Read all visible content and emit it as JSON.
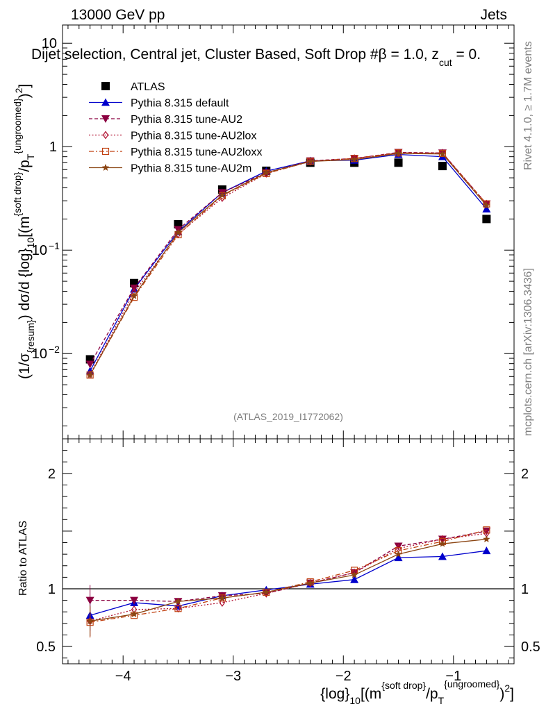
{
  "header": {
    "left": "13000 GeV pp",
    "right": "Jets",
    "title": "Dijet selection, Central jet, Cluster Based, Soft Drop #β = 1.0, z",
    "title_sub": "cut",
    "title_tail": " = 0."
  },
  "side_labels": {
    "rivet": "Rivet 4.1.0, ≥ 1.7M events",
    "mcplots": "mcplots.cern.ch [arXiv:1306.3436]"
  },
  "watermark": "(ATLAS_2019_I1772062)",
  "y_axis": {
    "main": "(1/σ",
    "main_sub": "{resum}",
    "main_mid": ") dσ/d {log}",
    "main_sub2": "10",
    "main_b": "[(m",
    "main_sup": "{soft drop}",
    "main_c": "/p",
    "main_sub3": "T",
    "main_sup2": "{ungroomed}",
    "main_d": ")",
    "main_sup3": "2",
    "main_e": "]",
    "ratio": "Ratio to ATLAS"
  },
  "x_axis": {
    "a": "{log}",
    "a_sub": "10",
    "b": "[(m",
    "b_sup": "{soft drop}",
    "c": "/p",
    "c_sub": "T",
    "c_sup": "{ungroomed}",
    "d": ")",
    "d_sup": "2",
    "e": "]"
  },
  "chart_data": {
    "type": "scatter",
    "x": [
      -4.3,
      -3.9,
      -3.5,
      -3.1,
      -2.7,
      -2.3,
      -1.9,
      -1.5,
      -1.1,
      -0.7
    ],
    "xlim": [
      -4.55,
      -0.45
    ],
    "xticks": [
      -4,
      -3,
      -2,
      -1
    ],
    "xtick_labels": [
      "−4",
      "−3",
      "−2",
      "−1"
    ],
    "main": {
      "yscale": "log",
      "ylim": [
        0.0015,
        15
      ],
      "yticks": [
        {
          "v": 10,
          "label": "10",
          "sup": ""
        },
        {
          "v": 1,
          "label": "1",
          "sup": ""
        },
        {
          "v": 0.1,
          "label": "10",
          "sup": "−1"
        },
        {
          "v": 0.01,
          "label": "10",
          "sup": "−2"
        }
      ]
    },
    "ratio": {
      "ylim": [
        0.35,
        2.3
      ],
      "yticks": [
        0.5,
        1,
        2
      ],
      "ytick_labels": [
        "0.5",
        "1",
        "2"
      ],
      "reference": 1
    },
    "series": [
      {
        "name": "ATLAS",
        "color": "#000000",
        "marker": "square-filled",
        "line": "none",
        "values": [
          0.0088,
          0.048,
          0.178,
          0.385,
          0.585,
          0.7,
          0.7,
          0.7,
          0.65,
          0.2
        ],
        "ratio": [
          1,
          1,
          1,
          1,
          1,
          1,
          1,
          1,
          1,
          1
        ]
      },
      {
        "name": "Pythia 8.315 default",
        "color": "#0000cc",
        "marker": "triangle-up-filled",
        "line": "solid",
        "values": [
          0.0068,
          0.042,
          0.151,
          0.36,
          0.58,
          0.73,
          0.74,
          0.84,
          0.8,
          0.25
        ],
        "ratio": [
          0.77,
          0.88,
          0.85,
          0.94,
          0.99,
          1.04,
          1.08,
          1.27,
          1.28,
          1.33
        ]
      },
      {
        "name": "Pythia 8.315 tune-AU2",
        "color": "#8b0040",
        "marker": "triangle-down-filled",
        "line": "dashed",
        "values": [
          0.0079,
          0.043,
          0.158,
          0.36,
          0.56,
          0.73,
          0.77,
          0.88,
          0.87,
          0.28
        ],
        "ratio": [
          0.9,
          0.9,
          0.89,
          0.94,
          0.96,
          1.05,
          1.14,
          1.37,
          1.43,
          1.5
        ]
      },
      {
        "name": "Pythia 8.315 tune-AU2lox",
        "color": "#b01030",
        "marker": "diamond-open",
        "line": "dotted",
        "values": [
          0.0063,
          0.039,
          0.143,
          0.32,
          0.55,
          0.72,
          0.77,
          0.87,
          0.87,
          0.28
        ],
        "ratio": [
          0.72,
          0.82,
          0.83,
          0.88,
          0.96,
          1.05,
          1.14,
          1.35,
          1.43,
          1.48
        ]
      },
      {
        "name": "Pythia 8.315 tune-AU2loxx",
        "color": "#c04010",
        "marker": "square-open",
        "line": "dashdot",
        "values": [
          0.0062,
          0.035,
          0.141,
          0.335,
          0.55,
          0.72,
          0.77,
          0.87,
          0.86,
          0.28
        ],
        "ratio": [
          0.71,
          0.77,
          0.83,
          0.92,
          0.97,
          1.06,
          1.16,
          1.33,
          1.41,
          1.51
        ]
      },
      {
        "name": "Pythia 8.315 tune-AU2m",
        "color": "#8b4513",
        "marker": "star-filled",
        "line": "solid",
        "values": [
          0.0062,
          0.036,
          0.148,
          0.34,
          0.56,
          0.72,
          0.75,
          0.86,
          0.85,
          0.27
        ],
        "ratio": [
          0.72,
          0.78,
          0.89,
          0.92,
          0.97,
          1.05,
          1.12,
          1.3,
          1.39,
          1.43
        ]
      }
    ]
  }
}
